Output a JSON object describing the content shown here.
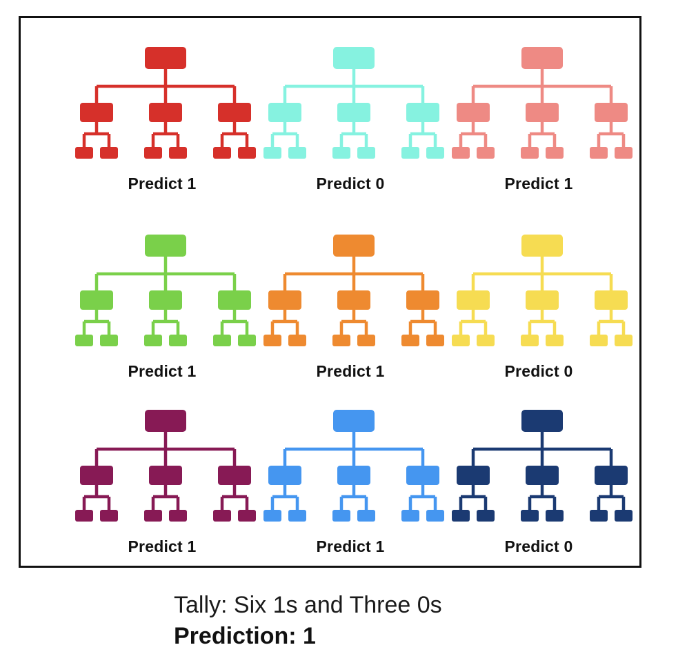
{
  "trees": [
    {
      "label": "Predict 1",
      "color": "#d6302a",
      "icon": "tree-hierarchy-icon"
    },
    {
      "label": "Predict 0",
      "color": "#86f2e0",
      "icon": "tree-hierarchy-icon"
    },
    {
      "label": "Predict 1",
      "color": "#ee8a84",
      "icon": "tree-hierarchy-icon"
    },
    {
      "label": "Predict 1",
      "color": "#7ad04a",
      "icon": "tree-hierarchy-icon"
    },
    {
      "label": "Predict 1",
      "color": "#ee8a30",
      "icon": "tree-hierarchy-icon"
    },
    {
      "label": "Predict 0",
      "color": "#f6dc52",
      "icon": "tree-hierarchy-icon"
    },
    {
      "label": "Predict 1",
      "color": "#871a55",
      "icon": "tree-hierarchy-icon"
    },
    {
      "label": "Predict 1",
      "color": "#4596f0",
      "icon": "tree-hierarchy-icon"
    },
    {
      "label": "Predict 0",
      "color": "#1b3a72",
      "icon": "tree-hierarchy-icon"
    }
  ],
  "tally": "Tally: Six 1s and Three 0s",
  "prediction": "Prediction: 1"
}
